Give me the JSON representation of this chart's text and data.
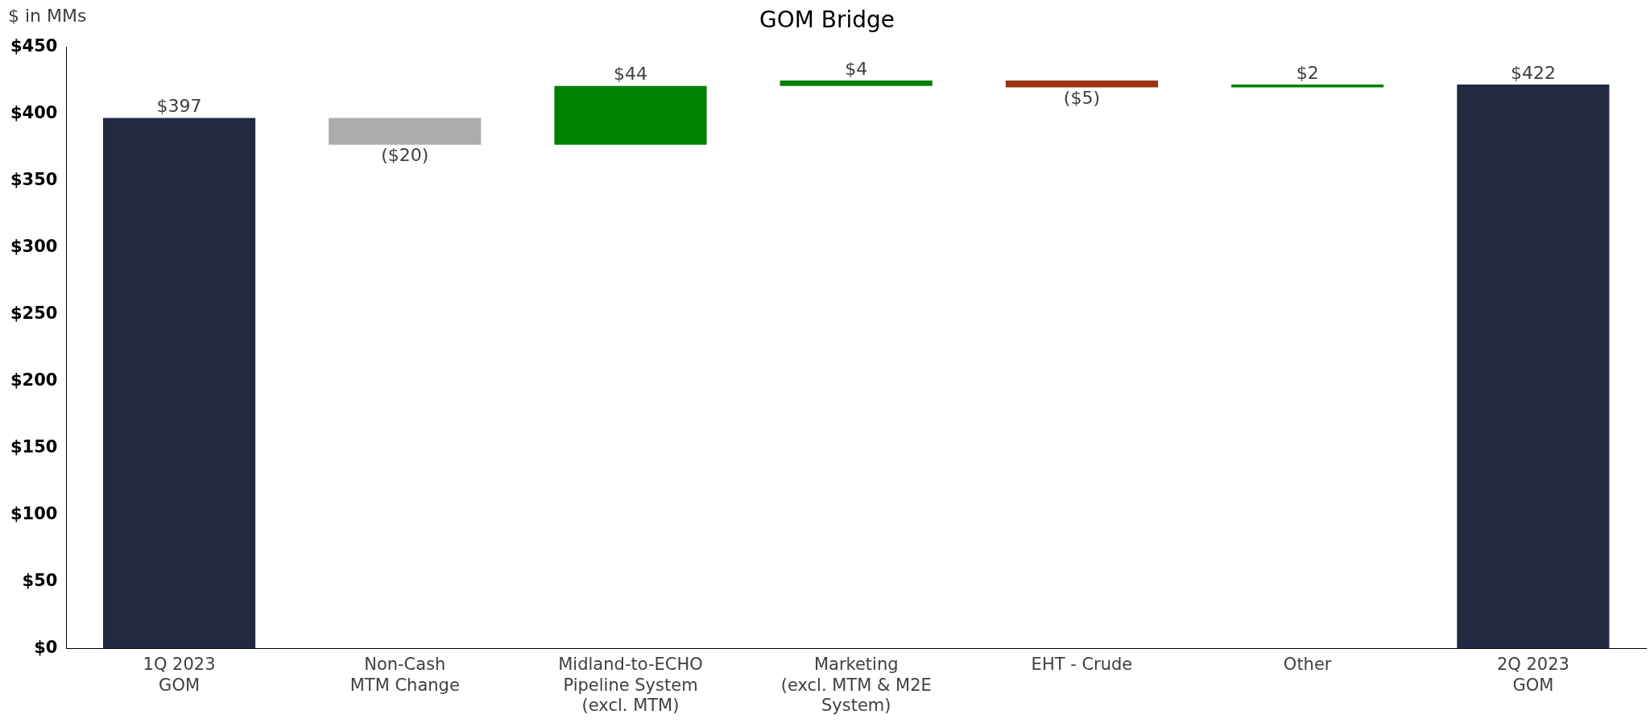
{
  "chart_data": {
    "type": "bar",
    "title": "GOM Bridge",
    "ylabel": "$ in MMs",
    "categories": [
      "1Q 2023\nGOM",
      "Non-Cash\nMTM Change",
      "Midland-to-ECHO\nPipeline System\n(excl. MTM)",
      "Marketing\n(excl. MTM & M2E\nSystem)",
      "EHT - Crude",
      "Other",
      "2Q 2023\nGOM"
    ],
    "values": [
      397,
      -20,
      44,
      4,
      -5,
      2,
      422
    ],
    "base": [
      0,
      397,
      377,
      421,
      425,
      420,
      0
    ],
    "colors": [
      "#222a42",
      "#aeabab",
      "#008000",
      "#008000",
      "#9e3312",
      "#008000",
      "#222a42"
    ],
    "value_labels": [
      "$397",
      "($20)",
      "$44",
      "$4",
      "($5)",
      "$2",
      "$422"
    ],
    "ylim": [
      0,
      450
    ],
    "yticks": [
      {
        "value": 0,
        "label": "$0"
      },
      {
        "value": 50,
        "label": "$50"
      },
      {
        "value": 100,
        "label": "$100"
      },
      {
        "value": 150,
        "label": "$150"
      },
      {
        "value": 200,
        "label": "$200"
      },
      {
        "value": 250,
        "label": "$250"
      },
      {
        "value": 300,
        "label": "$300"
      },
      {
        "value": 350,
        "label": "$350"
      },
      {
        "value": 400,
        "label": "$400"
      },
      {
        "value": 450,
        "label": "$450"
      }
    ],
    "grid": false,
    "legend": false
  }
}
